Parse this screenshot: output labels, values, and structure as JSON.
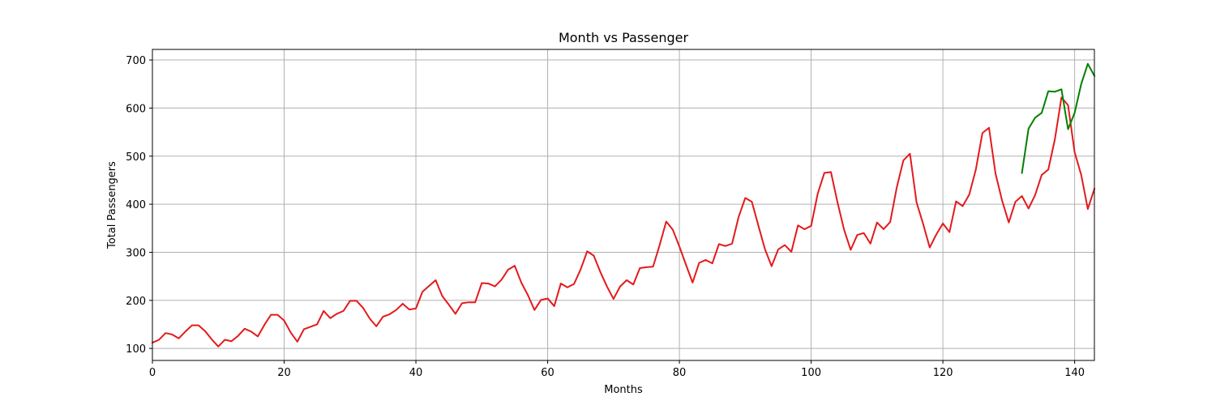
{
  "chart_data": {
    "type": "line",
    "title": "Month vs Passenger",
    "xlabel": "Months",
    "ylabel": "Total Passengers",
    "xlim": [
      0,
      143
    ],
    "ylim": [
      75,
      722
    ],
    "grid": true,
    "xticks": [
      0,
      20,
      40,
      60,
      80,
      100,
      120,
      140
    ],
    "yticks": [
      100,
      200,
      300,
      400,
      500,
      600,
      700
    ],
    "series": [
      {
        "color": "#e31a1c",
        "x_start": 0,
        "values": [
          112,
          118,
          132,
          129,
          121,
          135,
          148,
          148,
          136,
          119,
          104,
          118,
          115,
          126,
          141,
          135,
          125,
          149,
          170,
          170,
          158,
          133,
          114,
          140,
          145,
          150,
          178,
          163,
          172,
          178,
          199,
          199,
          184,
          162,
          146,
          166,
          171,
          180,
          193,
          181,
          183,
          218,
          230,
          242,
          209,
          191,
          172,
          194,
          196,
          196,
          236,
          235,
          229,
          243,
          264,
          272,
          237,
          211,
          180,
          201,
          204,
          188,
          235,
          227,
          234,
          264,
          302,
          293,
          259,
          229,
          203,
          229,
          242,
          233,
          267,
          269,
          270,
          315,
          364,
          347,
          312,
          274,
          237,
          278,
          284,
          277,
          317,
          313,
          318,
          374,
          413,
          405,
          355,
          306,
          271,
          306,
          315,
          301,
          356,
          348,
          355,
          422,
          465,
          467,
          404,
          347,
          305,
          336,
          340,
          318,
          362,
          348,
          363,
          435,
          491,
          505,
          404,
          359,
          310,
          337,
          360,
          342,
          406,
          396,
          420,
          472,
          548,
          559,
          463,
          407,
          362,
          405,
          417,
          391,
          419,
          461,
          472,
          535,
          622,
          606,
          508,
          461,
          390,
          432
        ]
      },
      {
        "color": "#008000",
        "x_start": 132,
        "values": [
          465,
          557,
          580,
          590,
          635,
          634,
          639,
          556,
          590,
          650,
          692,
          667
        ]
      }
    ]
  }
}
